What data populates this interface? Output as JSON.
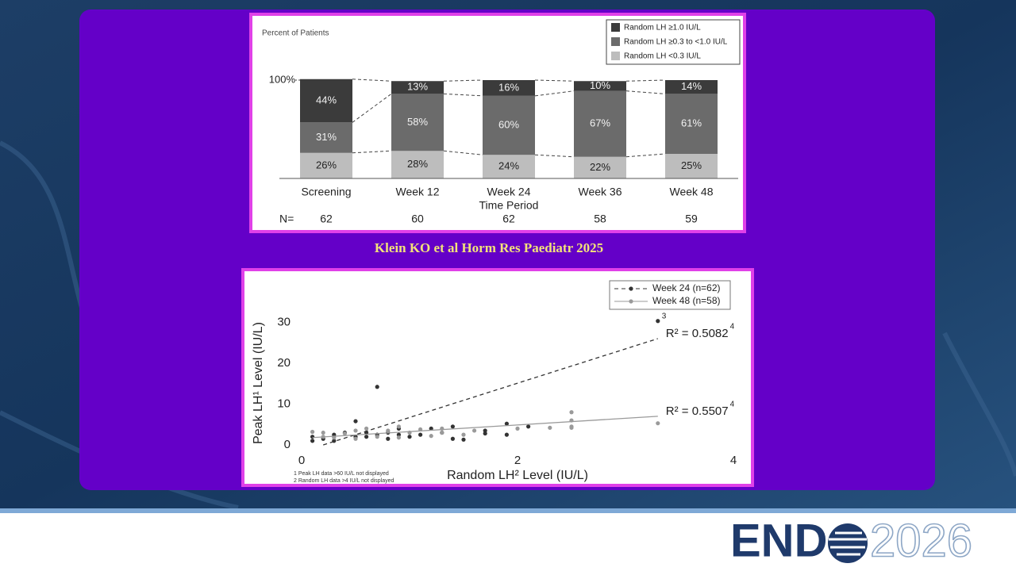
{
  "chart_data": [
    {
      "type": "bar",
      "stacked": true,
      "ylabel": "Percent of Patients",
      "xlabel": "Time Period",
      "categories": [
        "Screening",
        "Week 12",
        "Week 24",
        "Week 36",
        "Week 48"
      ],
      "series": [
        {
          "name": "Random LH ≥1.0 IU/L",
          "color": "#3b3b3b",
          "values": [
            44,
            13,
            16,
            10,
            14
          ],
          "value_labels": [
            "44%",
            "13%",
            "16%",
            "10%",
            "14%"
          ]
        },
        {
          "name": "Random LH ≥0.3 to <1.0 IU/L",
          "color": "#6b6b6b",
          "values": [
            31,
            58,
            60,
            67,
            61
          ],
          "value_labels": [
            "31%",
            "58%",
            "60%",
            "67%",
            "61%"
          ]
        },
        {
          "name": "Random LH <0.3 IU/L",
          "color": "#bdbdbd",
          "values": [
            26,
            28,
            24,
            22,
            25
          ],
          "value_labels": [
            "26%",
            "28%",
            "24%",
            "22%",
            "25%"
          ]
        }
      ],
      "ylim": [
        0,
        100
      ],
      "yticks": [
        {
          "value": 100,
          "label": "100%"
        }
      ],
      "legend": "upper right",
      "n_label": "N=",
      "n_values": [
        62,
        60,
        62,
        58,
        59
      ]
    },
    {
      "type": "scatter",
      "ylabel": "Peak LH¹ Level (IU/L)",
      "xlabel": "Random LH² Level (IU/L)",
      "xlim": [
        0,
        4
      ],
      "xticks": [
        0,
        2,
        4
      ],
      "ylim": [
        0,
        32
      ],
      "yticks": [
        0,
        10,
        20,
        30
      ],
      "legend": "upper right",
      "footnotes": [
        "1 Peak LH data >60 IU/L not displayed",
        "2 Random LH data >4 IU/L not displayed"
      ],
      "series": [
        {
          "name": "Week 24 (n=62)",
          "color": "#333333",
          "dash": true,
          "x": [
            0.1,
            0.1,
            0.2,
            0.3,
            0.3,
            0.4,
            0.5,
            0.5,
            0.6,
            0.6,
            0.7,
            0.7,
            0.8,
            0.8,
            0.9,
            0.9,
            1.0,
            1.1,
            1.2,
            1.3,
            1.4,
            1.4,
            1.5,
            1.7,
            1.7,
            1.9,
            1.9,
            2.1,
            3.3
          ],
          "y": [
            1,
            2,
            1.5,
            2.5,
            1,
            3,
            2,
            5.8,
            2,
            3,
            2.5,
            14.2,
            1.5,
            3,
            2.5,
            4,
            2,
            2.5,
            4,
            3,
            4.5,
            1.5,
            1.3,
            3.5,
            2.8,
            5.2,
            2.5,
            4.5,
            30.3
          ],
          "trendline": {
            "x": [
              0.2,
              3.3
            ],
            "y": [
              0,
              26
            ]
          },
          "r2_label": "R² = 0.5082",
          "r2_note": "4",
          "point_note": "3"
        },
        {
          "name": "Week 48 (n=58)",
          "color": "#9a9a9a",
          "dash": false,
          "x": [
            0.1,
            0.2,
            0.2,
            0.3,
            0.4,
            0.5,
            0.5,
            0.6,
            0.7,
            0.8,
            0.9,
            0.9,
            1.0,
            1.1,
            1.2,
            1.3,
            1.3,
            1.5,
            1.6,
            2.0,
            2.3,
            2.5,
            2.5,
            2.5,
            2.5,
            3.3
          ],
          "y": [
            3.2,
            2,
            3,
            1.8,
            2.8,
            3.5,
            1.5,
            4,
            2,
            3.5,
            4.5,
            1.8,
            3,
            3.8,
            2.2,
            3,
            4,
            2.5,
            3.5,
            4.0,
            4.2,
            4.5,
            8.0,
            6.0,
            4.2,
            5.3
          ],
          "trendline": {
            "x": [
              0.1,
              3.3
            ],
            "y": [
              1.8,
              7
            ]
          },
          "r2_label": "R² = 0.5507",
          "r2_note": "4"
        }
      ]
    }
  ],
  "citation": "Klein KO et al Horm Res Paediatr 2025",
  "logo": {
    "brand": "END",
    "year": "2026"
  }
}
